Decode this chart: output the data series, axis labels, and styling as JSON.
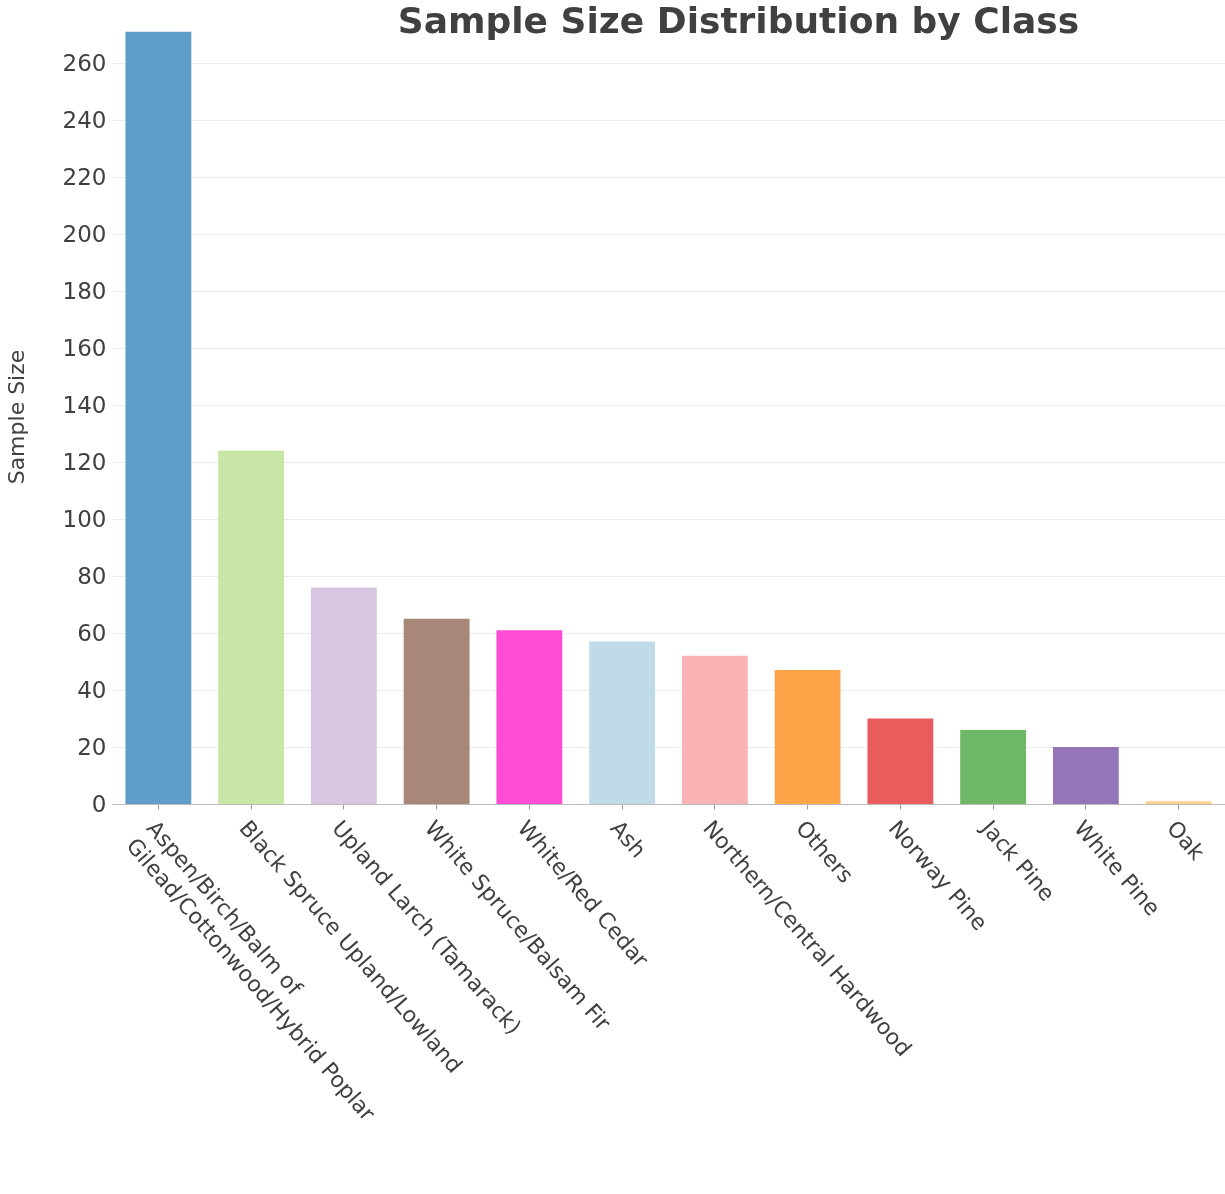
{
  "chart_data": {
    "type": "bar",
    "title": "Sample Size Distribution by Class",
    "ylabel": "Sample Size",
    "categories": [
      "Aspen/Birch/Balm of Gilead/Cottonwood/Hybrid Poplar",
      "Black Spruce Upland/Lowland",
      "Upland Larch (Tamarack)",
      "White Spruce/Balsam Fir",
      "White/Red Cedar",
      "Ash",
      "Northern/Central Hardwood",
      "Others",
      "Norway Pine",
      "Jack Pine",
      "White Pine",
      "Oak"
    ],
    "values": [
      271,
      124,
      76,
      65,
      61,
      57,
      52,
      47,
      30,
      26,
      20,
      1
    ],
    "colors": [
      "#5f9ec9",
      "#c8e6a5",
      "#d8c6e0",
      "#a78878",
      "#ff4dd5",
      "#bfdbe8",
      "#fab3b5",
      "#fda448",
      "#e85c5e",
      "#6fb865",
      "#9476b8",
      "#fdd08f"
    ],
    "ylim": [
      0,
      272
    ],
    "yticks": [
      0,
      20,
      40,
      60,
      80,
      100,
      120,
      140,
      160,
      180,
      200,
      220,
      240,
      260
    ],
    "grid": "y"
  }
}
